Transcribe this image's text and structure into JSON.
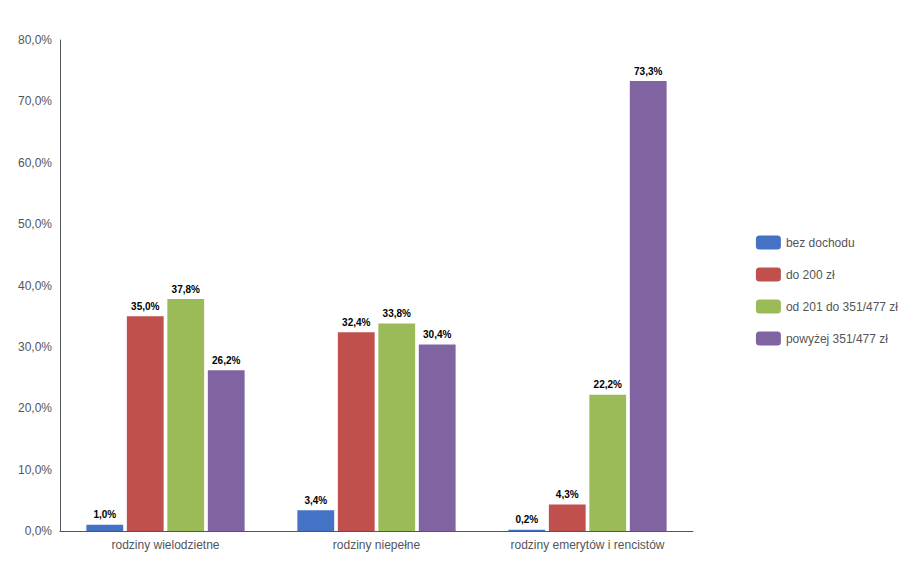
{
  "chart_data": {
    "type": "bar",
    "categories": [
      "rodziny wielodzietne",
      "rodziny niepełne",
      "rodziny emerytów i rencistów"
    ],
    "series": [
      {
        "name": "bez dochodu",
        "color": "#4472C4",
        "values": [
          1.0,
          3.4,
          0.2
        ],
        "value_labels": [
          "1,0%",
          "3,4%",
          "0,2%"
        ]
      },
      {
        "name": "do 200 zł",
        "color": "#C0504D",
        "values": [
          35.0,
          32.4,
          4.3
        ],
        "value_labels": [
          "35,0%",
          "32,4%",
          "4,3%"
        ]
      },
      {
        "name": "od 201 do 351/477 zł",
        "color": "#9BBB59",
        "values": [
          37.8,
          33.8,
          22.2
        ],
        "value_labels": [
          "37,8%",
          "33,8%",
          "22,2%"
        ]
      },
      {
        "name": "powyżej 351/477 zł",
        "color": "#8064A2",
        "values": [
          26.2,
          30.4,
          73.3
        ],
        "value_labels": [
          "26,2%",
          "30,4%",
          "73,3%"
        ]
      }
    ],
    "ylim": [
      0,
      80
    ],
    "yticks": [
      {
        "value": 0,
        "label": "0,0%"
      },
      {
        "value": 10,
        "label": "10,0%"
      },
      {
        "value": 20,
        "label": "20,0%"
      },
      {
        "value": 30,
        "label": "30,0%"
      },
      {
        "value": 40,
        "label": "40,0%"
      },
      {
        "value": 50,
        "label": "50,0%"
      },
      {
        "value": 60,
        "label": "60,0%"
      },
      {
        "value": 70,
        "label": "70,0%"
      },
      {
        "value": 80,
        "label": "80,0%"
      }
    ],
    "grid": false,
    "legend": "right",
    "data_labels": true
  }
}
